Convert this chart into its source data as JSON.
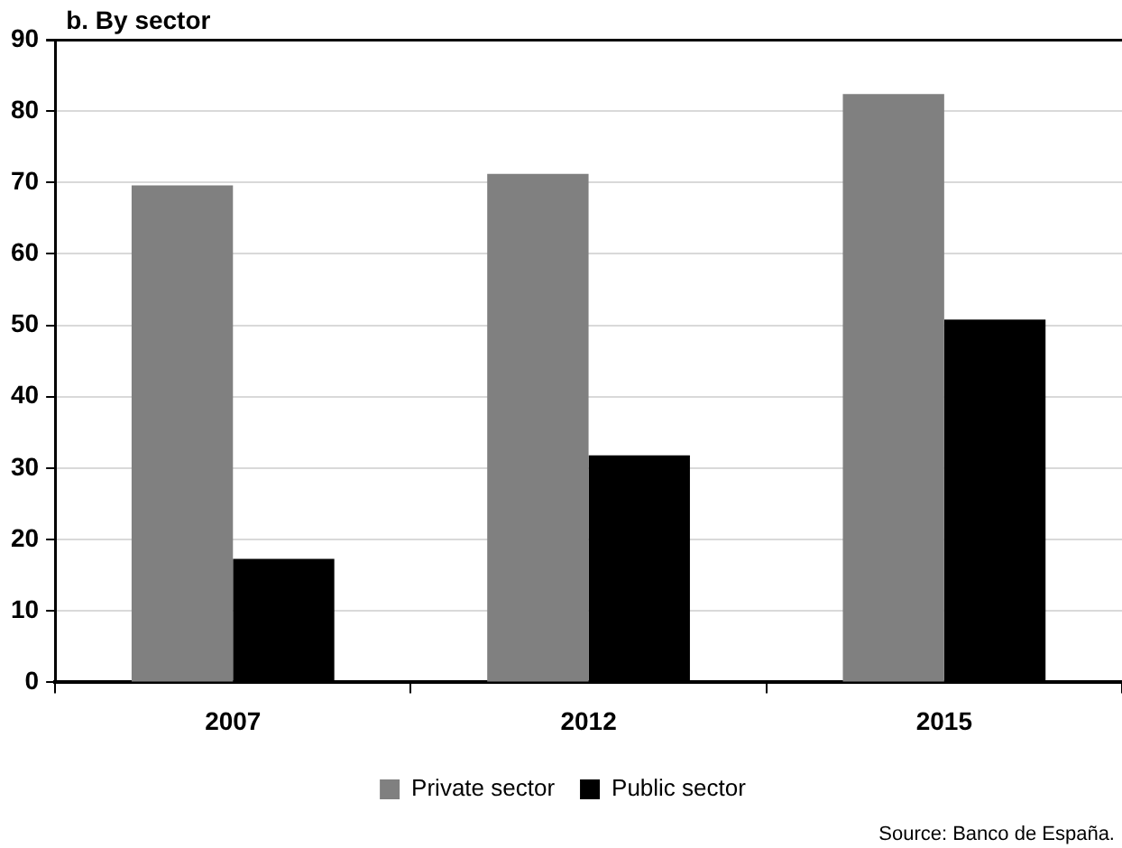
{
  "chart_data": {
    "type": "bar",
    "title": "b. By sector",
    "categories": [
      "2007",
      "2012",
      "2015"
    ],
    "series": [
      {
        "name": "Private sector",
        "color": "#808080",
        "values": [
          69.6,
          71.2,
          82.4
        ]
      },
      {
        "name": "Public sector",
        "color": "#000000",
        "values": [
          17.3,
          31.8,
          50.8
        ]
      }
    ],
    "ylim": [
      0,
      90
    ],
    "yticks": [
      0,
      10,
      20,
      30,
      40,
      50,
      60,
      70,
      80,
      90
    ],
    "grid": "y",
    "legend": "bottom",
    "annotations": [
      "Source: Banco de España."
    ]
  }
}
